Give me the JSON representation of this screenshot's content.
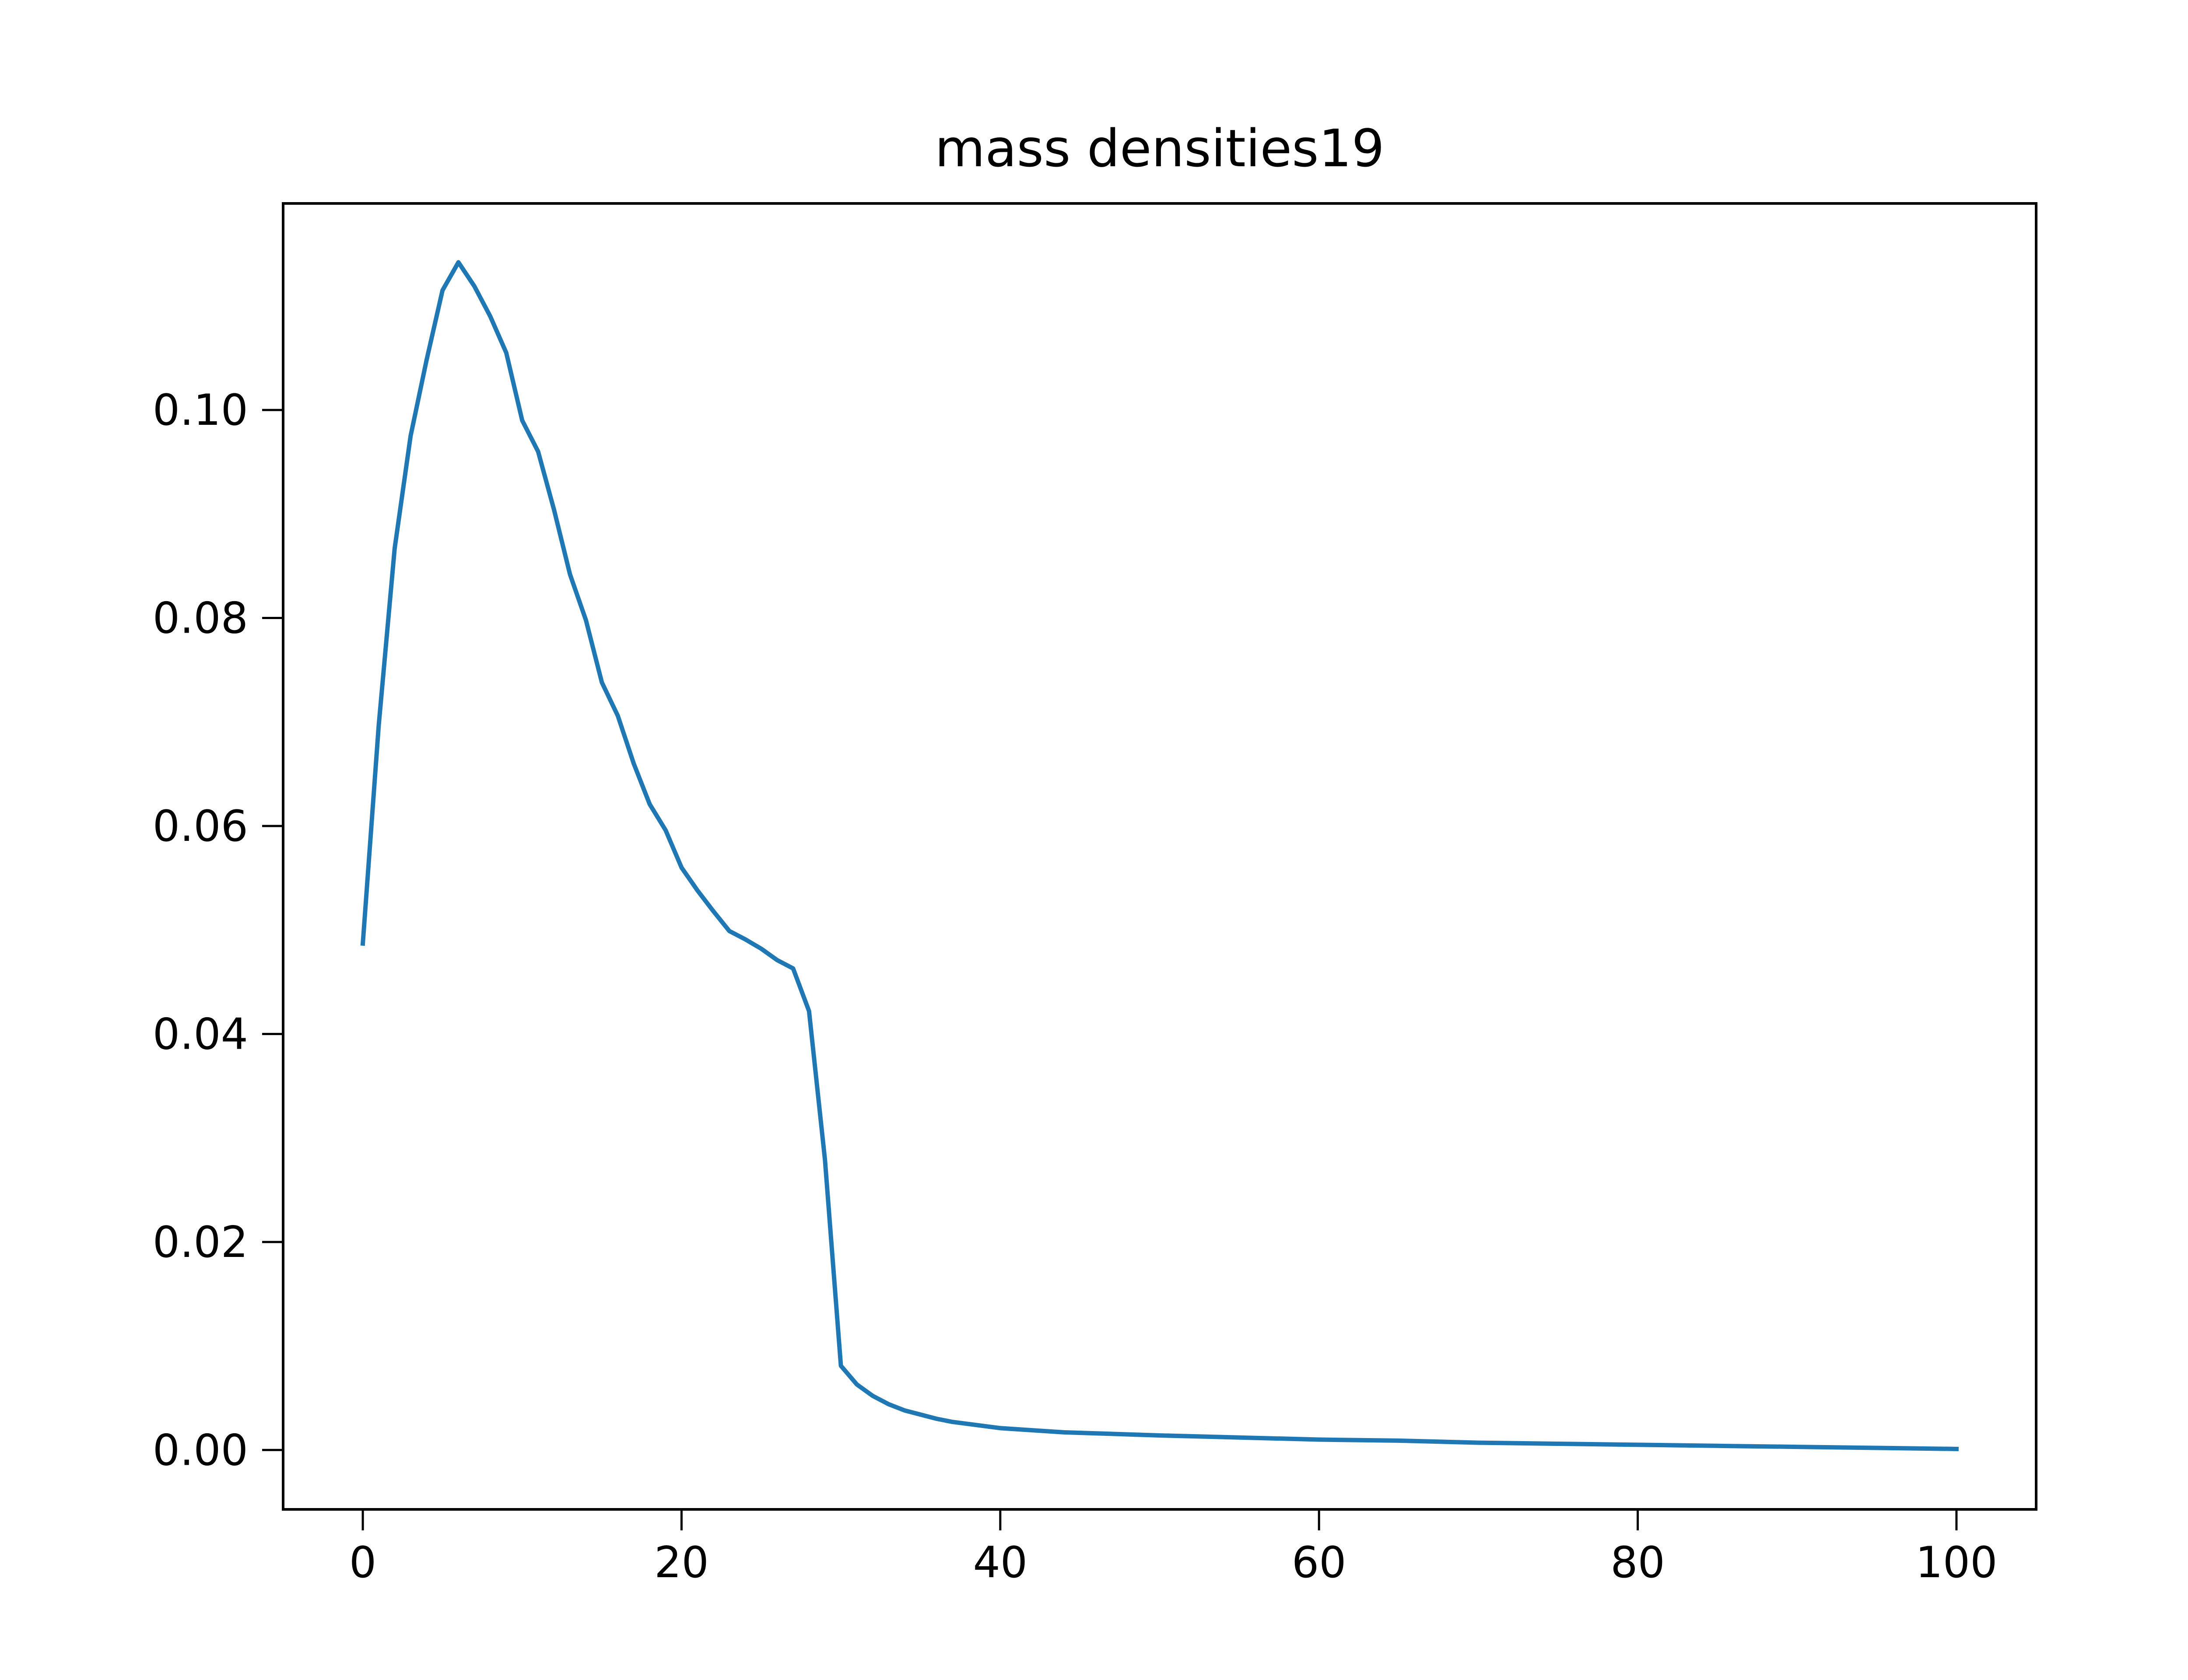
{
  "chart_data": {
    "type": "line",
    "title": "mass densities19",
    "xlabel": "",
    "ylabel": "",
    "xlim": [
      -5,
      105
    ],
    "ylim": [
      -0.00571,
      0.11986
    ],
    "xticks": [
      0,
      20,
      40,
      60,
      80,
      100
    ],
    "xtick_labels": [
      "0",
      "20",
      "40",
      "60",
      "80",
      "100"
    ],
    "yticks": [
      0.0,
      0.02,
      0.04,
      0.06,
      0.08,
      0.1
    ],
    "ytick_labels": [
      "0.00",
      "0.02",
      "0.04",
      "0.06",
      "0.08",
      "0.10"
    ],
    "grid": false,
    "series": [
      {
        "color": "#1f77b4",
        "points": [
          [
            0,
            0.0487
          ],
          [
            1,
            0.0697
          ],
          [
            2,
            0.0867
          ],
          [
            3,
            0.0975
          ],
          [
            4,
            0.1048
          ],
          [
            5,
            0.1115
          ],
          [
            6,
            0.1142
          ],
          [
            7,
            0.1119
          ],
          [
            8,
            0.109
          ],
          [
            9,
            0.1055
          ],
          [
            10,
            0.099
          ],
          [
            11,
            0.096
          ],
          [
            12,
            0.0904
          ],
          [
            13,
            0.0842
          ],
          [
            14,
            0.0798
          ],
          [
            15,
            0.0738
          ],
          [
            16,
            0.0706
          ],
          [
            17,
            0.066
          ],
          [
            18,
            0.0621
          ],
          [
            19,
            0.0596
          ],
          [
            20,
            0.056
          ],
          [
            21,
            0.0538
          ],
          [
            22,
            0.0518
          ],
          [
            23,
            0.0499
          ],
          [
            24,
            0.0491
          ],
          [
            25,
            0.0482
          ],
          [
            26,
            0.0471
          ],
          [
            27,
            0.0463
          ],
          [
            28,
            0.0422
          ],
          [
            29,
            0.0279
          ],
          [
            30,
            0.0081
          ],
          [
            31,
            0.0063
          ],
          [
            32,
            0.0052
          ],
          [
            33,
            0.0044
          ],
          [
            34,
            0.0038
          ],
          [
            35,
            0.0034
          ],
          [
            36,
            0.003
          ],
          [
            37,
            0.0027
          ],
          [
            38,
            0.0025
          ],
          [
            39,
            0.0023
          ],
          [
            40,
            0.0021
          ],
          [
            42,
            0.0019
          ],
          [
            44,
            0.0017
          ],
          [
            46,
            0.0016
          ],
          [
            48,
            0.0015
          ],
          [
            50,
            0.0014
          ],
          [
            55,
            0.0012
          ],
          [
            60,
            0.001
          ],
          [
            65,
            0.0009
          ],
          [
            70,
            0.0007
          ],
          [
            75,
            0.0006
          ],
          [
            80,
            0.0005
          ],
          [
            85,
            0.0004
          ],
          [
            90,
            0.0003
          ],
          [
            95,
            0.0002
          ],
          [
            100,
            0.0001
          ]
        ]
      }
    ]
  }
}
